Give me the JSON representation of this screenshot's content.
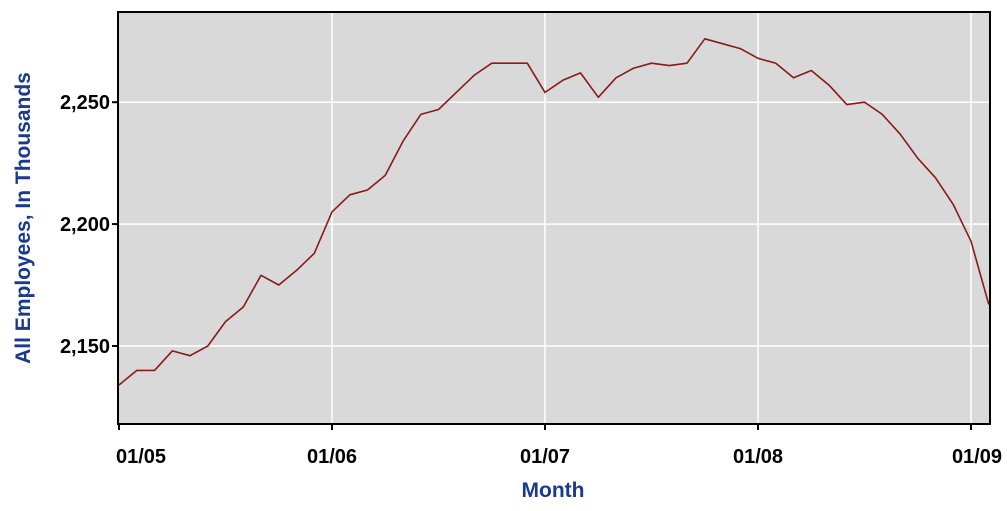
{
  "chart_data": {
    "type": "line",
    "xlabel": "Month",
    "ylabel": "All Employees, In Thousands",
    "x_ticks": [
      "01/05",
      "01/06",
      "01/07",
      "01/08",
      "01/09"
    ],
    "y_ticks": [
      "2,150",
      "2,200",
      "2,250"
    ],
    "y_tick_values": [
      2150,
      2200,
      2250
    ],
    "ylim": [
      2118,
      2287
    ],
    "grid": true,
    "legend": "none",
    "colors": {
      "plot_background": "#d9d9d9",
      "grid": "#ffffff",
      "line": "#8b1a1a",
      "axis_title": "#1a3a8f",
      "tick_labels": "#000000"
    },
    "series": [
      {
        "x": [
          "01/05",
          "02/05",
          "03/05",
          "04/05",
          "05/05",
          "06/05",
          "07/05",
          "08/05",
          "09/05",
          "10/05",
          "11/05",
          "12/05",
          "01/06",
          "02/06",
          "03/06",
          "04/06",
          "05/06",
          "06/06",
          "07/06",
          "08/06",
          "09/06",
          "10/06",
          "11/06",
          "12/06",
          "01/07",
          "02/07",
          "03/07",
          "04/07",
          "05/07",
          "06/07",
          "07/07",
          "08/07",
          "09/07",
          "10/07",
          "11/07",
          "12/07",
          "01/08",
          "02/08",
          "03/08",
          "04/08",
          "05/08",
          "06/08",
          "07/08",
          "08/08",
          "09/08",
          "10/08",
          "11/08",
          "12/08",
          "01/09",
          "02/09"
        ],
        "values": [
          2134,
          2140,
          2140,
          2148,
          2146,
          2150,
          2160,
          2166,
          2179,
          2175,
          2181,
          2188,
          2205,
          2212,
          2214,
          2220,
          2234,
          2245,
          2247,
          2254,
          2261,
          2266,
          2266,
          2266,
          2254,
          2259,
          2262,
          2252,
          2260,
          2264,
          2266,
          2265,
          2266,
          2276,
          2274,
          2272,
          2268,
          2266,
          2260,
          2263,
          2257,
          2249,
          2250,
          2245,
          2237,
          2227,
          2219,
          2208,
          2193,
          2167
        ]
      }
    ]
  }
}
